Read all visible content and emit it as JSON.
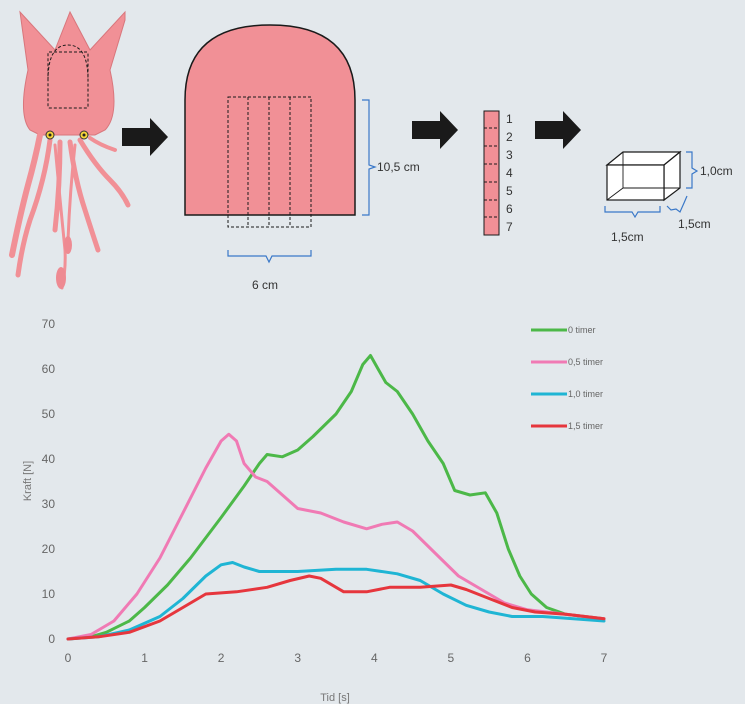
{
  "diagram": {
    "dim_length": "10,5 cm",
    "dim_width": "6 cm",
    "strip_numbers": [
      {
        "label": "1",
        "color": "#b0389a"
      },
      {
        "label": "2",
        "color": "#6a2a8a"
      },
      {
        "label": "3",
        "color": "#18a8b8"
      },
      {
        "label": "4",
        "color": "#30a040"
      },
      {
        "label": "5",
        "color": "#e03a3a"
      },
      {
        "label": "6",
        "color": "#2a5aa8"
      },
      {
        "label": "7",
        "color": "#222222"
      }
    ],
    "cube_height": "1,0cm",
    "cube_depth": "1,5cm",
    "cube_width": "1,5cm"
  },
  "colors": {
    "squid": "#f19096",
    "bracket": "#3a78c8",
    "arrow": "#1a1a1a",
    "background": "#e3e8ec"
  },
  "chart_data": {
    "type": "line",
    "xlabel": "Tid [s]",
    "ylabel": "Kraft [N]",
    "xlim": [
      0,
      7
    ],
    "ylim": [
      0,
      70
    ],
    "xticks": [
      "0",
      "1",
      "2",
      "3",
      "4",
      "5",
      "6",
      "7"
    ],
    "yticks": [
      "0",
      "10",
      "20",
      "30",
      "40",
      "50",
      "60",
      "70"
    ],
    "grid": false,
    "legend_position": "top-right",
    "series": [
      {
        "name": "0 timer",
        "color": "#4cb848",
        "points": [
          [
            0,
            0
          ],
          [
            0.3,
            0.5
          ],
          [
            0.5,
            1.5
          ],
          [
            0.8,
            4
          ],
          [
            1,
            7
          ],
          [
            1.3,
            12
          ],
          [
            1.6,
            18
          ],
          [
            2,
            27
          ],
          [
            2.3,
            34
          ],
          [
            2.5,
            39
          ],
          [
            2.6,
            41
          ],
          [
            2.8,
            40.5
          ],
          [
            3,
            42
          ],
          [
            3.2,
            45
          ],
          [
            3.5,
            50
          ],
          [
            3.7,
            55
          ],
          [
            3.85,
            61
          ],
          [
            3.95,
            63
          ],
          [
            4.05,
            60
          ],
          [
            4.15,
            57
          ],
          [
            4.3,
            55
          ],
          [
            4.5,
            50
          ],
          [
            4.7,
            44
          ],
          [
            4.9,
            39
          ],
          [
            5.05,
            33
          ],
          [
            5.25,
            32
          ],
          [
            5.45,
            32.5
          ],
          [
            5.6,
            28
          ],
          [
            5.75,
            20
          ],
          [
            5.9,
            14
          ],
          [
            6.05,
            10
          ],
          [
            6.25,
            7
          ],
          [
            6.5,
            5.5
          ],
          [
            7,
            4.5
          ]
        ]
      },
      {
        "name": "0,5 timer",
        "color": "#f07ab4",
        "points": [
          [
            0,
            0
          ],
          [
            0.3,
            1
          ],
          [
            0.6,
            4
          ],
          [
            0.9,
            10
          ],
          [
            1.2,
            18
          ],
          [
            1.5,
            28
          ],
          [
            1.8,
            38
          ],
          [
            2,
            44
          ],
          [
            2.1,
            45.5
          ],
          [
            2.2,
            44
          ],
          [
            2.3,
            39
          ],
          [
            2.45,
            36
          ],
          [
            2.6,
            35
          ],
          [
            2.8,
            32
          ],
          [
            3,
            29
          ],
          [
            3.3,
            28
          ],
          [
            3.6,
            26
          ],
          [
            3.9,
            24.5
          ],
          [
            4.1,
            25.5
          ],
          [
            4.3,
            26
          ],
          [
            4.5,
            24
          ],
          [
            4.8,
            19
          ],
          [
            5.1,
            14
          ],
          [
            5.4,
            11
          ],
          [
            5.7,
            8
          ],
          [
            6,
            6.5
          ],
          [
            6.5,
            5.5
          ],
          [
            7,
            4.5
          ]
        ]
      },
      {
        "name": "1,0 timer",
        "color": "#1fb5d4",
        "points": [
          [
            0,
            0
          ],
          [
            0.4,
            0.5
          ],
          [
            0.8,
            2
          ],
          [
            1.2,
            5
          ],
          [
            1.5,
            9
          ],
          [
            1.8,
            14
          ],
          [
            2,
            16.5
          ],
          [
            2.15,
            17
          ],
          [
            2.3,
            16
          ],
          [
            2.5,
            15
          ],
          [
            3,
            15
          ],
          [
            3.5,
            15.5
          ],
          [
            3.9,
            15.5
          ],
          [
            4.3,
            14.5
          ],
          [
            4.6,
            13
          ],
          [
            4.9,
            10
          ],
          [
            5.2,
            7.5
          ],
          [
            5.5,
            6
          ],
          [
            5.8,
            5
          ],
          [
            6.2,
            5
          ],
          [
            6.6,
            4.5
          ],
          [
            7,
            4
          ]
        ]
      },
      {
        "name": "1,5 timer",
        "color": "#e6363d",
        "points": [
          [
            0,
            0
          ],
          [
            0.4,
            0.5
          ],
          [
            0.8,
            1.5
          ],
          [
            1.2,
            4
          ],
          [
            1.5,
            7
          ],
          [
            1.8,
            10
          ],
          [
            2.2,
            10.5
          ],
          [
            2.6,
            11.5
          ],
          [
            2.9,
            13
          ],
          [
            3.15,
            14
          ],
          [
            3.3,
            13.5
          ],
          [
            3.6,
            10.5
          ],
          [
            3.9,
            10.5
          ],
          [
            4.2,
            11.5
          ],
          [
            4.6,
            11.5
          ],
          [
            5,
            12
          ],
          [
            5.2,
            11
          ],
          [
            5.5,
            9
          ],
          [
            5.8,
            7
          ],
          [
            6.1,
            6
          ],
          [
            6.5,
            5.5
          ],
          [
            7,
            4.5
          ]
        ]
      }
    ]
  }
}
